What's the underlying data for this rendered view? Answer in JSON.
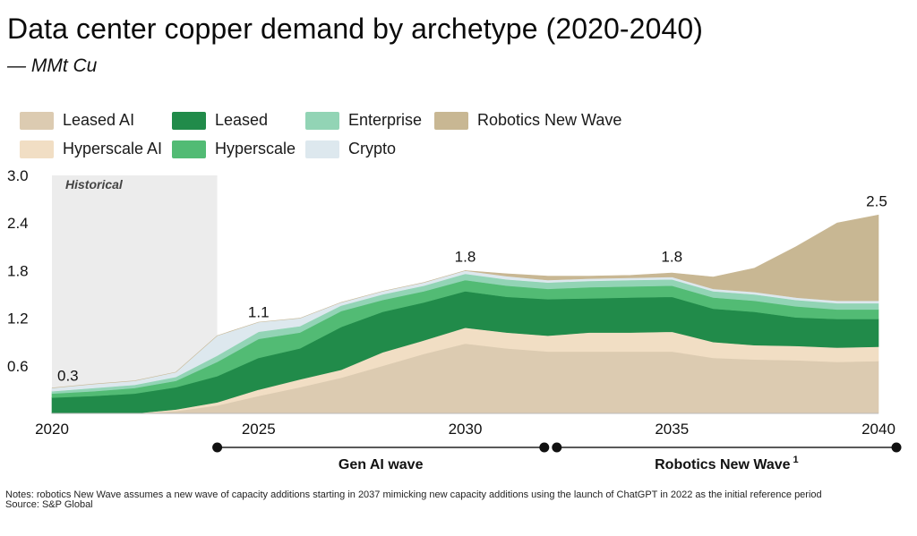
{
  "title": "Data center copper demand by archetype (2020-2040)",
  "subtitle": "— MMt Cu",
  "legend": [
    {
      "label": "Leased AI",
      "color": "#dccbb1"
    },
    {
      "label": "Leased",
      "color": "#218b4a"
    },
    {
      "label": "Enterprise",
      "color": "#92d4b5"
    },
    {
      "label": "Robotics New Wave",
      "color": "#c8b793"
    },
    {
      "label": "Hyperscale AI",
      "color": "#f1dec4"
    },
    {
      "label": "Hyperscale",
      "color": "#52bb74"
    },
    {
      "label": "Crypto",
      "color": "#dde8ee"
    }
  ],
  "chart_data": {
    "type": "area",
    "stacked": true,
    "title": "Data center copper demand by archetype (2020-2040)",
    "ylabel": "MMt Cu",
    "xlim": [
      2020,
      2040
    ],
    "ylim": [
      0,
      3.0
    ],
    "y_ticks": [
      "0.6",
      "1.2",
      "1.8",
      "2.4",
      "3.0"
    ],
    "x_ticks": [
      "2020",
      "2025",
      "2030",
      "2035",
      "2040"
    ],
    "historical_label": "Historical",
    "historical_range": [
      2020,
      2024
    ],
    "x": [
      2020,
      2021,
      2022,
      2023,
      2024,
      2025,
      2026,
      2027,
      2028,
      2029,
      2030,
      2031,
      2032,
      2033,
      2034,
      2035,
      2036,
      2037,
      2038,
      2039,
      2040
    ],
    "series": [
      {
        "name": "Leased AI",
        "color": "#dccbb1",
        "values": [
          0,
          0,
          0,
          0.03,
          0.1,
          0.22,
          0.33,
          0.45,
          0.6,
          0.75,
          0.88,
          0.82,
          0.78,
          0.78,
          0.78,
          0.78,
          0.7,
          0.68,
          0.67,
          0.65,
          0.66
        ]
      },
      {
        "name": "Hyperscale AI",
        "color": "#f1dec4",
        "values": [
          0,
          0,
          0,
          0.02,
          0.04,
          0.08,
          0.1,
          0.1,
          0.17,
          0.17,
          0.2,
          0.2,
          0.2,
          0.24,
          0.24,
          0.25,
          0.2,
          0.18,
          0.18,
          0.18,
          0.18
        ]
      },
      {
        "name": "Leased",
        "color": "#218b4a",
        "values": [
          0.2,
          0.22,
          0.25,
          0.28,
          0.33,
          0.4,
          0.39,
          0.54,
          0.51,
          0.48,
          0.46,
          0.45,
          0.46,
          0.43,
          0.44,
          0.44,
          0.42,
          0.42,
          0.36,
          0.36,
          0.35
        ]
      },
      {
        "name": "Hyperscale",
        "color": "#52bb74",
        "values": [
          0.05,
          0.06,
          0.07,
          0.08,
          0.18,
          0.24,
          0.2,
          0.2,
          0.15,
          0.14,
          0.14,
          0.14,
          0.13,
          0.14,
          0.14,
          0.14,
          0.14,
          0.14,
          0.14,
          0.12,
          0.12
        ]
      },
      {
        "name": "Enterprise",
        "color": "#92d4b5",
        "values": [
          0.03,
          0.04,
          0.04,
          0.05,
          0.08,
          0.09,
          0.08,
          0.07,
          0.07,
          0.07,
          0.08,
          0.08,
          0.08,
          0.08,
          0.08,
          0.08,
          0.08,
          0.08,
          0.08,
          0.08,
          0.08
        ]
      },
      {
        "name": "Crypto",
        "color": "#dde8ee",
        "values": [
          0.04,
          0.05,
          0.05,
          0.06,
          0.25,
          0.12,
          0.1,
          0.04,
          0.04,
          0.04,
          0.04,
          0.04,
          0.03,
          0.03,
          0.03,
          0.03,
          0.03,
          0.03,
          0.03,
          0.03,
          0.03
        ]
      },
      {
        "name": "Robotics New Wave",
        "color": "#c8b793",
        "values": [
          0,
          0,
          0,
          0,
          0,
          0,
          0,
          0,
          0,
          0,
          0,
          0.03,
          0.05,
          0.03,
          0.03,
          0.05,
          0.15,
          0.3,
          0.64,
          0.98,
          1.08
        ]
      }
    ],
    "annotations": [
      {
        "x": 2020,
        "y": 0.3,
        "label": "0.3"
      },
      {
        "x": 2025,
        "y": 1.1,
        "label": "1.1"
      },
      {
        "x": 2030,
        "y": 1.8,
        "label": "1.8"
      },
      {
        "x": 2035,
        "y": 1.8,
        "label": "1.8"
      },
      {
        "x": 2040,
        "y": 2.5,
        "label": "2.5"
      }
    ],
    "periods": [
      {
        "label": "Gen AI wave",
        "start": 2024,
        "end": 2032
      },
      {
        "label": "Robotics New Wave",
        "sup": "1",
        "start": 2032,
        "end": 2040
      }
    ]
  },
  "notes": {
    "text": "Notes: robotics New Wave assumes a new wave of capacity additions starting in 2037 mimicking new capacity additions using the launch of ChatGPT in 2022 as the initial reference period",
    "source": "Source: S&P Global"
  }
}
